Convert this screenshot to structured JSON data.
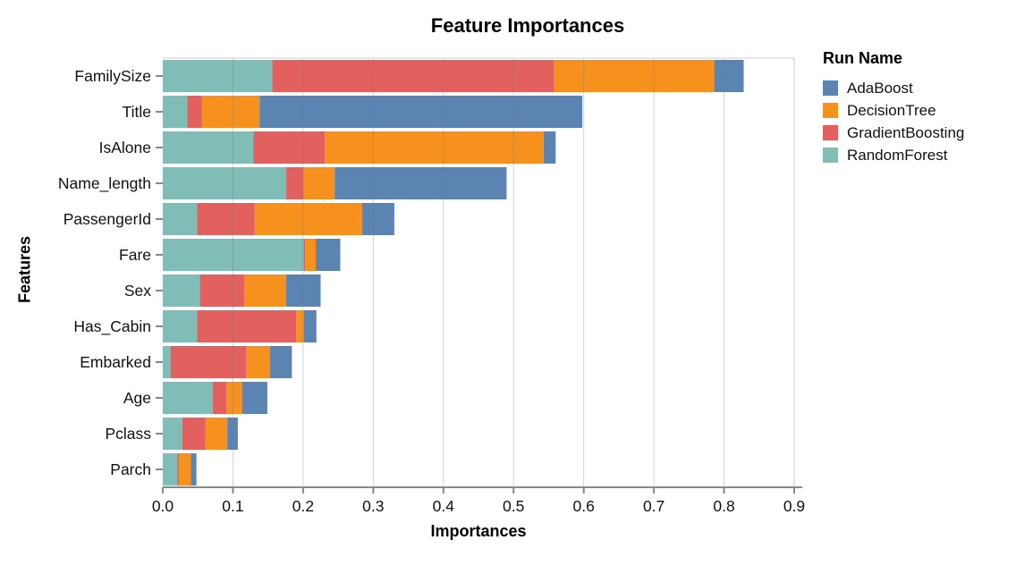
{
  "chart_data": {
    "type": "bar",
    "orientation": "horizontal",
    "stacked": true,
    "title": "Feature Importances",
    "xlabel": "Importances",
    "ylabel": "Features",
    "legend_title": "Run Name",
    "legend_position": "right",
    "grid": true,
    "xlim": [
      0,
      0.9
    ],
    "xticks": [
      "0.0",
      "0.1",
      "0.2",
      "0.3",
      "0.4",
      "0.5",
      "0.6",
      "0.7",
      "0.8",
      "0.9"
    ],
    "categories": [
      "FamilySize",
      "Title",
      "IsAlone",
      "Name_length",
      "PassengerId",
      "Fare",
      "Sex",
      "Has_Cabin",
      "Embarked",
      "Age",
      "Pclass",
      "Parch"
    ],
    "series": [
      {
        "name": "AdaBoost",
        "color": "#5b84b2",
        "values": [
          0.042,
          0.46,
          0.017,
          0.245,
          0.046,
          0.035,
          0.049,
          0.018,
          0.031,
          0.036,
          0.015,
          0.008
        ]
      },
      {
        "name": "DecisionTree",
        "color": "#f6911e",
        "values": [
          0.228,
          0.082,
          0.312,
          0.044,
          0.153,
          0.015,
          0.06,
          0.011,
          0.034,
          0.022,
          0.031,
          0.017
        ]
      },
      {
        "name": "GradientBoosting",
        "color": "#e2615f",
        "values": [
          0.402,
          0.021,
          0.102,
          0.025,
          0.082,
          0.002,
          0.063,
          0.141,
          0.108,
          0.02,
          0.033,
          0.002
        ]
      },
      {
        "name": "RandomForest",
        "color": "#80bdb6",
        "values": [
          0.156,
          0.035,
          0.129,
          0.176,
          0.049,
          0.201,
          0.053,
          0.049,
          0.011,
          0.071,
          0.028,
          0.021
        ]
      }
    ],
    "stack_order": [
      "RandomForest",
      "GradientBoosting",
      "DecisionTree",
      "AdaBoost"
    ],
    "colors": {
      "axis_line": "#888888",
      "tick_label": "#111111",
      "grid_overlay": "rgba(120,120,120,0.32)",
      "plot_border": "#dddddd"
    }
  }
}
